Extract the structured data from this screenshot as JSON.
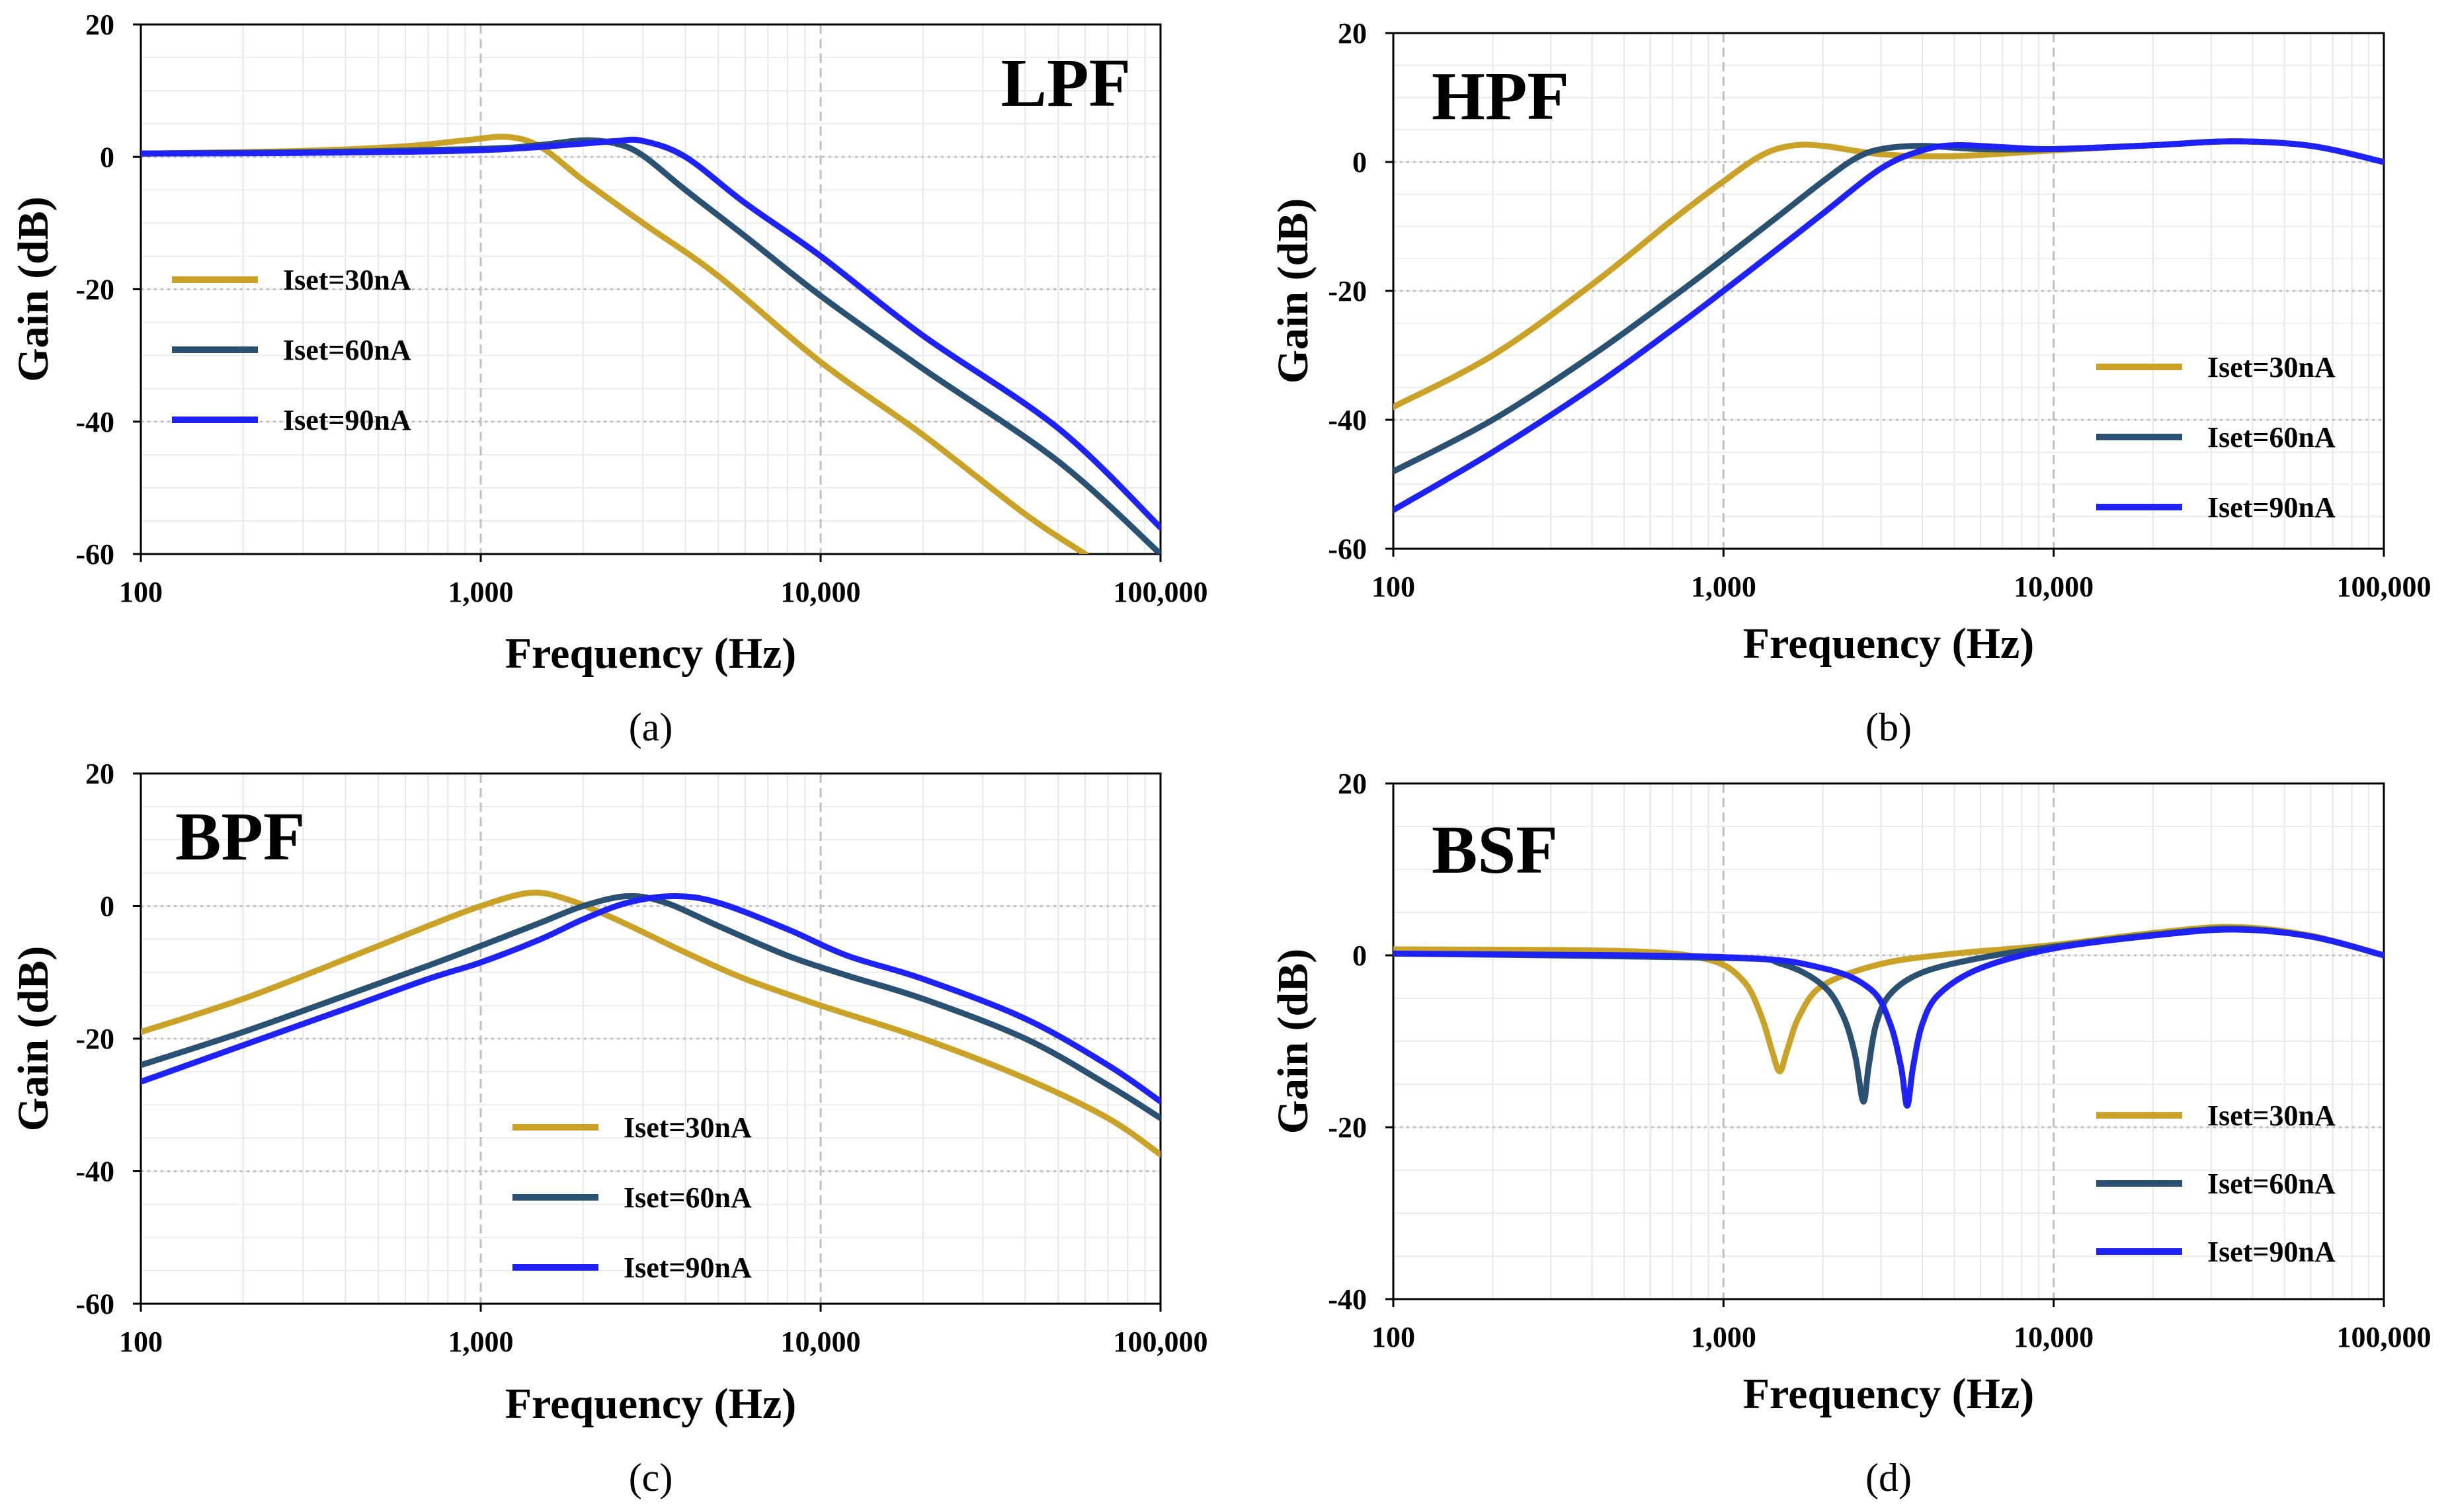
{
  "legend_labels": [
    "Iset=30nA",
    "Iset=60nA",
    "Iset=90nA"
  ],
  "colors": {
    "30nA": "#C9A227",
    "60nA": "#2A5072",
    "90nA": "#1E22F5"
  },
  "chart_data": [
    {
      "type": "line",
      "panel_title": "LPF",
      "caption": "(a)",
      "xlabel": "Frequency (Hz)",
      "ylabel": "Gain (dB)",
      "xscale": "log",
      "xlim": [
        100,
        100000
      ],
      "ylim": [
        -60,
        20
      ],
      "xticks": [
        "100",
        "1,000",
        "10,000",
        "100,000"
      ],
      "yticks": [
        "20",
        "0",
        "-20",
        "-40",
        "-60"
      ],
      "grid": true,
      "legend_position": "left-middle",
      "series": [
        {
          "name": "Iset=30nA",
          "x": [
            100,
            300,
            600,
            900,
            1200,
            1500,
            2000,
            3000,
            5000,
            10000,
            20000,
            40000,
            60000
          ],
          "y": [
            0.5,
            0.9,
            1.6,
            2.5,
            3.0,
            1.5,
            -3.5,
            -10,
            -18,
            -31,
            -42,
            -54,
            -60
          ]
        },
        {
          "name": "Iset=60nA",
          "x": [
            100,
            300,
            1000,
            1500,
            2000,
            2500,
            3000,
            4000,
            6000,
            10000,
            20000,
            50000,
            100000
          ],
          "y": [
            0.5,
            0.7,
            1.2,
            1.8,
            2.5,
            2.0,
            0.2,
            -5,
            -12,
            -21,
            -32,
            -46,
            -60
          ]
        },
        {
          "name": "Iset=90nA",
          "x": [
            100,
            300,
            1000,
            2000,
            2500,
            3000,
            4000,
            6000,
            10000,
            20000,
            50000,
            100000
          ],
          "y": [
            0.5,
            0.6,
            1.0,
            2.0,
            2.4,
            2.4,
            0,
            -7,
            -15,
            -27,
            -41,
            -56
          ]
        }
      ]
    },
    {
      "type": "line",
      "panel_title": "HPF",
      "caption": "(b)",
      "xlabel": "Frequency (Hz)",
      "ylabel": "Gain (dB)",
      "xscale": "log",
      "xlim": [
        100,
        100000
      ],
      "ylim": [
        -60,
        20
      ],
      "xticks": [
        "100",
        "1,000",
        "10,000",
        "100,000"
      ],
      "yticks": [
        "20",
        "0",
        "-20",
        "-40",
        "-60"
      ],
      "grid": true,
      "legend_position": "right-lower",
      "series": [
        {
          "name": "Iset=30nA",
          "x": [
            100,
            200,
            400,
            700,
            1000,
            1300,
            1600,
            2000,
            3000,
            5000,
            10000,
            20000,
            35000,
            60000,
            100000
          ],
          "y": [
            -38,
            -30,
            -19,
            -9,
            -3,
            1,
            2.5,
            2.5,
            1.2,
            0.9,
            1.8,
            2.6,
            3.2,
            2.5,
            0
          ]
        },
        {
          "name": "Iset=60nA",
          "x": [
            100,
            200,
            400,
            700,
            1000,
            1500,
            2000,
            2500,
            3000,
            4000,
            6000,
            10000,
            20000,
            35000,
            60000,
            100000
          ],
          "y": [
            -48,
            -40,
            -30,
            -21,
            -15,
            -8,
            -3,
            0.5,
            2.0,
            2.5,
            2.0,
            2.0,
            2.6,
            3.2,
            2.5,
            0
          ]
        },
        {
          "name": "Iset=90nA",
          "x": [
            100,
            200,
            400,
            700,
            1000,
            1500,
            2000,
            3000,
            4000,
            5000,
            7000,
            10000,
            20000,
            35000,
            60000,
            100000
          ],
          "y": [
            -54,
            -45,
            -35,
            -26,
            -20,
            -13,
            -8,
            -1,
            1.8,
            2.6,
            2.3,
            2.0,
            2.6,
            3.2,
            2.5,
            0
          ]
        }
      ]
    },
    {
      "type": "line",
      "panel_title": "BPF",
      "caption": "(c)",
      "xlabel": "Frequency (Hz)",
      "ylabel": "Gain (dB)",
      "xscale": "log",
      "xlim": [
        100,
        100000
      ],
      "ylim": [
        -60,
        20
      ],
      "xticks": [
        "100",
        "1,000",
        "10,000",
        "100,000"
      ],
      "yticks": [
        "20",
        "0",
        "-20",
        "-40",
        "-60"
      ],
      "grid": true,
      "legend_position": "center-lower",
      "series": [
        {
          "name": "Iset=30nA",
          "x": [
            100,
            200,
            400,
            700,
            1000,
            1400,
            1800,
            2500,
            4000,
            6000,
            10000,
            20000,
            40000,
            70000,
            100000
          ],
          "y": [
            -19,
            -14,
            -8,
            -3,
            0,
            2,
            1,
            -2,
            -7,
            -11,
            -15,
            -20,
            -26,
            -32,
            -37.5
          ]
        },
        {
          "name": "Iset=60nA",
          "x": [
            100,
            200,
            400,
            700,
            1000,
            1500,
            2000,
            2700,
            3500,
            5000,
            8000,
            12000,
            20000,
            40000,
            70000,
            100000
          ],
          "y": [
            -24,
            -19,
            -13.5,
            -9,
            -6,
            -2.5,
            0,
            1.5,
            0.5,
            -3,
            -7.5,
            -10.5,
            -14,
            -20,
            -27,
            -32
          ]
        },
        {
          "name": "Iset=90nA",
          "x": [
            100,
            200,
            400,
            700,
            1000,
            1500,
            2000,
            2700,
            3700,
            5000,
            8000,
            12000,
            20000,
            40000,
            70000,
            100000
          ],
          "y": [
            -26.5,
            -21,
            -15.5,
            -11,
            -8.5,
            -5,
            -2,
            0.5,
            1.5,
            0.5,
            -3.5,
            -7.5,
            -11,
            -17,
            -24,
            -29.5
          ]
        }
      ]
    },
    {
      "type": "line",
      "panel_title": "BSF",
      "caption": "(d)",
      "xlabel": "Frequency (Hz)",
      "ylabel": "Gain (dB)",
      "xscale": "log",
      "xlim": [
        100,
        100000
      ],
      "ylim": [
        -40,
        20
      ],
      "xticks": [
        "100",
        "1,000",
        "10,000",
        "100,000"
      ],
      "yticks": [
        "20",
        "0",
        "-20",
        "-40"
      ],
      "grid": true,
      "legend_position": "right-lower",
      "series": [
        {
          "name": "Iset=30nA",
          "x": [
            100,
            500,
            900,
            1150,
            1300,
            1400,
            1480,
            1560,
            1700,
            2000,
            3000,
            5000,
            10000,
            20000,
            35000,
            60000,
            100000
          ],
          "y": [
            0.7,
            0.5,
            -0.5,
            -3,
            -7,
            -11,
            -13.5,
            -11,
            -7,
            -3.5,
            -1,
            0.2,
            1.2,
            2.6,
            3.3,
            2.3,
            0
          ]
        },
        {
          "name": "Iset=60nA",
          "x": [
            100,
            1000,
            1500,
            2000,
            2300,
            2500,
            2650,
            2750,
            2900,
            3200,
            4000,
            6000,
            10000,
            20000,
            35000,
            60000,
            100000
          ],
          "y": [
            0.2,
            -0.3,
            -1,
            -3.5,
            -7,
            -11.5,
            -17,
            -13,
            -8,
            -4.5,
            -2,
            -0.3,
            1.0,
            2.4,
            3.1,
            2.2,
            0
          ]
        },
        {
          "name": "Iset=90nA",
          "x": [
            100,
            1000,
            2000,
            2800,
            3200,
            3450,
            3600,
            3750,
            4000,
            4500,
            6000,
            10000,
            20000,
            35000,
            60000,
            100000
          ],
          "y": [
            0.2,
            -0.2,
            -1.5,
            -4,
            -8,
            -13,
            -17.5,
            -13,
            -8,
            -4.5,
            -1.5,
            0.8,
            2.3,
            3.0,
            2.2,
            0
          ]
        }
      ]
    }
  ]
}
